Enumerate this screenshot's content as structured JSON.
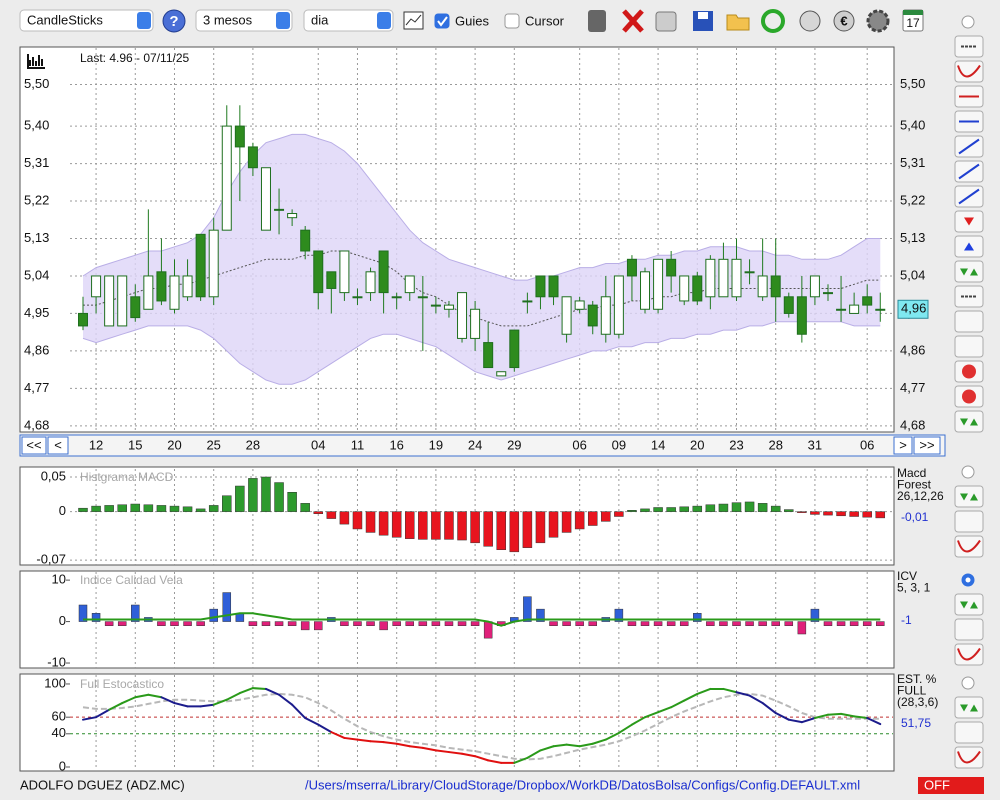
{
  "toolbar": {
    "chart_type": "CandleSticks",
    "period": "3 mesos",
    "interval": "dia",
    "guides": {
      "label": "Guies",
      "checked": true
    },
    "cursor": {
      "label": "Cursor",
      "checked": false
    }
  },
  "chart_data": [
    {
      "type": "candlestick",
      "title": "Last: 4.96 - 07/11/25",
      "categories": [
        null,
        "12",
        null,
        null,
        "15",
        null,
        null,
        "20",
        null,
        null,
        "25",
        null,
        null,
        "28",
        null,
        null,
        null,
        null,
        "04",
        null,
        null,
        "11",
        null,
        null,
        "16",
        null,
        null,
        "19",
        null,
        null,
        "24",
        null,
        null,
        "29",
        null,
        null,
        null,
        null,
        "06",
        null,
        null,
        "09",
        null,
        null,
        "14",
        null,
        null,
        "20",
        null,
        null,
        "23",
        null,
        null,
        "28",
        null,
        null,
        "31",
        null,
        null,
        null,
        "06",
        null
      ],
      "open": [
        4.95,
        4.99,
        4.92,
        4.92,
        4.99,
        4.96,
        5.05,
        4.96,
        4.99,
        5.14,
        4.99,
        5.15,
        5.4,
        5.35,
        5.15,
        5.2,
        5.18,
        5.15,
        5.1,
        5.05,
        5.0,
        4.99,
        5.0,
        5.1,
        4.99,
        5.0,
        4.99,
        4.97,
        4.96,
        4.89,
        4.89,
        4.88,
        4.8,
        4.91,
        4.98,
        5.04,
        5.04,
        4.9,
        4.96,
        4.97,
        4.9,
        4.9,
        5.08,
        4.96,
        4.96,
        5.08,
        4.98,
        5.04,
        4.99,
        4.99,
        4.99,
        5.05,
        4.99,
        5.04,
        4.99,
        4.99,
        4.99,
        5.0,
        4.96,
        4.95,
        4.99,
        4.96
      ],
      "high": [
        4.99,
        5.04,
        5.04,
        5.04,
        5.02,
        5.2,
        5.13,
        5.08,
        5.08,
        5.14,
        5.18,
        5.45,
        5.45,
        5.36,
        5.3,
        5.25,
        5.2,
        5.16,
        5.1,
        5.05,
        5.1,
        5.01,
        5.06,
        5.1,
        5.0,
        5.04,
        5.04,
        4.99,
        4.98,
        5.0,
        4.98,
        4.93,
        4.81,
        4.91,
        5.0,
        5.04,
        5.04,
        4.99,
        4.99,
        4.98,
        5.04,
        5.04,
        5.09,
        5.06,
        5.08,
        5.1,
        5.04,
        5.05,
        5.09,
        5.12,
        5.13,
        5.08,
        5.13,
        5.13,
        5.0,
        5.04,
        5.04,
        5.02,
        5.04,
        5.0,
        5.02,
        5.0
      ],
      "low": [
        4.91,
        4.95,
        4.92,
        4.92,
        4.93,
        4.96,
        4.97,
        4.95,
        4.98,
        4.98,
        4.97,
        5.15,
        5.22,
        5.28,
        5.15,
        5.14,
        5.16,
        5.08,
        4.96,
        4.95,
        4.98,
        4.97,
        4.98,
        4.95,
        4.96,
        4.98,
        4.86,
        4.95,
        4.94,
        4.88,
        4.86,
        4.82,
        4.8,
        4.81,
        4.95,
        4.96,
        4.97,
        4.88,
        4.95,
        4.9,
        4.88,
        4.89,
        4.98,
        4.95,
        4.95,
        5.0,
        4.97,
        4.97,
        4.96,
        4.99,
        4.98,
        5.02,
        4.98,
        4.93,
        4.94,
        4.88,
        4.97,
        4.98,
        4.93,
        4.95,
        4.95,
        4.93
      ],
      "close": [
        4.92,
        5.04,
        5.04,
        5.04,
        4.94,
        5.04,
        4.98,
        5.04,
        5.04,
        4.99,
        5.15,
        5.4,
        5.35,
        5.3,
        5.3,
        5.2,
        5.19,
        5.1,
        5.0,
        5.01,
        5.1,
        4.99,
        5.05,
        5.0,
        4.99,
        5.04,
        4.99,
        4.97,
        4.97,
        5.0,
        4.96,
        4.82,
        4.81,
        4.82,
        4.98,
        4.99,
        4.99,
        4.99,
        4.98,
        4.92,
        4.99,
        5.04,
        5.04,
        5.05,
        5.08,
        5.04,
        5.04,
        4.98,
        5.08,
        5.08,
        5.08,
        5.05,
        5.04,
        4.99,
        4.95,
        4.9,
        5.04,
        5.0,
        4.96,
        4.97,
        4.97,
        4.96
      ],
      "bollinger_upper": [
        5.04,
        5.06,
        5.07,
        5.08,
        5.09,
        5.1,
        5.1,
        5.11,
        5.12,
        5.14,
        5.18,
        5.24,
        5.29,
        5.33,
        5.36,
        5.37,
        5.38,
        5.38,
        5.37,
        5.36,
        5.34,
        5.31,
        5.27,
        5.23,
        5.19,
        5.15,
        5.12,
        5.1,
        5.08,
        5.07,
        5.06,
        5.05,
        5.04,
        5.03,
        5.03,
        5.04,
        5.04,
        5.05,
        5.06,
        5.06,
        5.07,
        5.07,
        5.08,
        5.08,
        5.09,
        5.09,
        5.1,
        5.1,
        5.11,
        5.11,
        5.11,
        5.1,
        5.1,
        5.09,
        5.09,
        5.08,
        5.08,
        5.08,
        5.09,
        5.11,
        5.13,
        5.13
      ],
      "bollinger_lower": [
        4.89,
        4.88,
        4.89,
        4.9,
        4.91,
        4.92,
        4.92,
        4.92,
        4.92,
        4.91,
        4.89,
        4.86,
        4.83,
        4.81,
        4.79,
        4.78,
        4.78,
        4.79,
        4.81,
        4.83,
        4.85,
        4.87,
        4.89,
        4.9,
        4.9,
        4.89,
        4.88,
        4.87,
        4.85,
        4.83,
        4.81,
        4.8,
        4.79,
        4.8,
        4.81,
        4.82,
        4.83,
        4.84,
        4.85,
        4.86,
        4.86,
        4.87,
        4.87,
        4.88,
        4.88,
        4.89,
        4.89,
        4.9,
        4.9,
        4.91,
        4.91,
        4.92,
        4.92,
        4.93,
        4.93,
        4.93,
        4.93,
        4.93,
        4.93,
        4.92,
        4.92,
        4.92
      ],
      "moving_average": [
        4.97,
        4.97,
        4.98,
        4.99,
        5.0,
        5.01,
        5.01,
        5.02,
        5.02,
        5.03,
        5.04,
        5.05,
        5.06,
        5.07,
        5.08,
        5.08,
        5.08,
        5.09,
        5.09,
        5.1,
        5.1,
        5.09,
        5.08,
        5.07,
        5.05,
        5.02,
        5.0,
        4.99,
        4.97,
        4.95,
        4.94,
        4.93,
        4.92,
        4.92,
        4.92,
        4.93,
        4.94,
        4.95,
        4.96,
        4.96,
        4.97,
        4.97,
        4.98,
        4.98,
        4.99,
        4.99,
        5.0,
        5.0,
        5.01,
        5.01,
        5.01,
        5.01,
        5.01,
        5.01,
        5.01,
        5.01,
        5.01,
        5.01,
        5.01,
        5.02,
        5.03,
        5.03
      ],
      "ylim": [
        4.67,
        5.59
      ],
      "yticks": [
        {
          "value": 5.5,
          "label": "5,50"
        },
        {
          "value": 5.4,
          "label": "5,40"
        },
        {
          "value": 5.31,
          "label": "5,31"
        },
        {
          "value": 5.22,
          "label": "5,22"
        },
        {
          "value": 5.13,
          "label": "5,13"
        },
        {
          "value": 5.04,
          "label": "5,04"
        },
        {
          "value": 4.95,
          "label": "4,95"
        },
        {
          "value": 4.86,
          "label": "4,86"
        },
        {
          "value": 4.77,
          "label": "4,77"
        },
        {
          "value": 4.68,
          "label": "4,68"
        }
      ],
      "last_value": {
        "value": 4.96,
        "label": "4,96"
      },
      "grid": true,
      "up_color": "#ffffff",
      "down_color": "#2e8b1e",
      "band_color": "#ddd5f7"
    },
    {
      "type": "bar",
      "title": "Histgrama MACD",
      "values": [
        0.005,
        0.008,
        0.009,
        0.01,
        0.011,
        0.01,
        0.009,
        0.008,
        0.007,
        0.004,
        0.009,
        0.023,
        0.037,
        0.048,
        0.05,
        0.042,
        0.028,
        0.012,
        -0.003,
        -0.01,
        -0.018,
        -0.025,
        -0.03,
        -0.034,
        -0.037,
        -0.039,
        -0.04,
        -0.04,
        -0.04,
        -0.041,
        -0.045,
        -0.05,
        -0.055,
        -0.058,
        -0.052,
        -0.045,
        -0.037,
        -0.03,
        -0.025,
        -0.02,
        -0.014,
        -0.007,
        0.002,
        0.004,
        0.006,
        0.006,
        0.007,
        0.008,
        0.01,
        0.011,
        0.013,
        0.014,
        0.012,
        0.008,
        0.003,
        -0.001,
        -0.004,
        -0.005,
        -0.006,
        -0.007,
        -0.008,
        -0.009
      ],
      "ylim": [
        -0.077,
        0.063
      ],
      "yticks": [
        {
          "value": 0.05,
          "label": "0,05"
        },
        0,
        {
          "value": -0.07,
          "label": "-0,07"
        }
      ],
      "legend": [
        "Macd",
        "Forest",
        "26,12,26"
      ],
      "current_label": "-0,01",
      "grid": true,
      "positive_color": "#2e9a2e",
      "negative_color": "#e8141e"
    },
    {
      "type": "bar",
      "title": "Indice Calidad Vela",
      "values": [
        4,
        2,
        -1,
        -1,
        4,
        1,
        -1,
        -1,
        -1,
        -1,
        3,
        7,
        2,
        -1,
        -1,
        -1,
        -1,
        -2,
        -2,
        1,
        -1,
        -1,
        -1,
        -2,
        -1,
        -1,
        -1,
        -1,
        -1,
        -1,
        -1,
        -4,
        -1,
        1,
        6,
        3,
        -1,
        -1,
        -1,
        -1,
        1,
        3,
        -1,
        -1,
        -1,
        -1,
        -1,
        2,
        -1,
        -1,
        -1,
        -1,
        -1,
        -1,
        -1,
        -3,
        3,
        -1,
        -1,
        -1,
        -1,
        -1
      ],
      "signal": [
        0.5,
        0.5,
        0.5,
        0.5,
        0.5,
        0.5,
        0.5,
        0.5,
        0.5,
        0.5,
        1,
        1.5,
        2,
        2,
        1.5,
        1,
        0.5,
        0.5,
        0.5,
        0.5,
        0.5,
        0.5,
        0.5,
        0.5,
        0.5,
        0.5,
        0.5,
        0.5,
        0.5,
        0.5,
        0.5,
        0,
        -1,
        0,
        0.5,
        0.5,
        0.5,
        0.5,
        0.5,
        0.5,
        0.5,
        0.5,
        0.5,
        0.5,
        0.5,
        0.5,
        0.5,
        0.5,
        0.5,
        0.5,
        0.5,
        0.5,
        0.5,
        0.5,
        0.5,
        0.5,
        0.5,
        0.5,
        0.5,
        0.5,
        0.5,
        0.5
      ],
      "ylim": [
        -11.2,
        12.2
      ],
      "yticks": [
        10,
        0,
        -10
      ],
      "legend": [
        "ICV",
        "5, 3, 1"
      ],
      "current_label": "-1",
      "grid": false,
      "positive_color": "#2f5fd8",
      "negative_color": "#e0207a",
      "signal_color": "#2a9a1a"
    },
    {
      "type": "line",
      "title": "Full Estocastico",
      "k": [
        57,
        60,
        69,
        77,
        84,
        87,
        84,
        77,
        73,
        73,
        75,
        81,
        89,
        95,
        94,
        87,
        75,
        59,
        51,
        42,
        35,
        33,
        31,
        30,
        28,
        25,
        23,
        20,
        18,
        16,
        13,
        8,
        5,
        5,
        11,
        20,
        25,
        27,
        25,
        28,
        33,
        41,
        51,
        60,
        66,
        72,
        80,
        88,
        94,
        94,
        90,
        86,
        77,
        65,
        57,
        54,
        59,
        63,
        64,
        61,
        59,
        51.75
      ],
      "d": [
        72,
        70,
        70,
        71,
        73,
        76,
        79,
        81,
        81,
        80,
        79,
        79,
        81,
        84,
        87,
        88,
        87,
        84,
        77,
        68,
        58,
        49,
        42,
        37,
        33,
        30,
        28,
        26,
        23,
        21,
        19,
        16,
        13,
        10,
        9,
        10,
        13,
        17,
        21,
        24,
        27,
        31,
        37,
        44,
        52,
        60,
        67,
        73,
        79,
        84,
        87,
        88,
        86,
        80,
        73,
        65,
        60,
        58,
        58,
        58,
        58,
        58
      ],
      "ylim": [
        -3.6,
        112
      ],
      "yticks": [
        100,
        60,
        40,
        0
      ],
      "guide_lines": [
        {
          "value": 60,
          "color": "#c03030"
        },
        {
          "value": 40,
          "color": "#2a8a2a"
        }
      ],
      "legend": [
        "EST. %",
        "FULL",
        "(28,3,6)"
      ],
      "current_label": "51,75",
      "grid": false,
      "rising_color": "#2a9a1a",
      "falling_color": "#1c1c8c",
      "oversold_color": "#e01010",
      "d_color": "#b8b8b8"
    }
  ],
  "navigation": [
    "<<",
    "<",
    ">",
    ">>"
  ],
  "footer": {
    "instrument": "ADOLFO DGUEZ (ADZ.MC)",
    "config_path": "/Users/mserra/Library/CloudStorage/Dropbox/WorkDB/DatosBolsa/Configs/Config.DEFAULT.xml",
    "status": "OFF"
  }
}
